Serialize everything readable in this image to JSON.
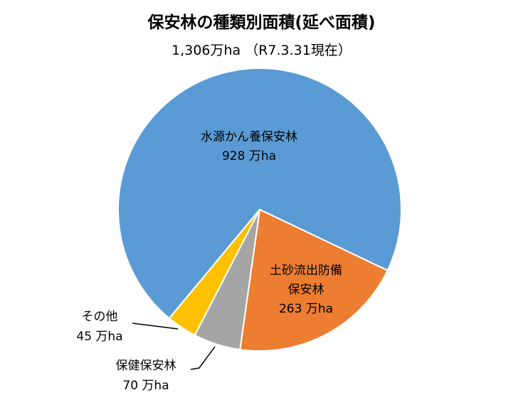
{
  "chart_data": {
    "type": "pie",
    "title": "保安林の種類別面積(延べ面積)",
    "subtitle": "1,306万ha （R7.3.31現在）",
    "categories": [
      "水源かん養保安林",
      "土砂流出防備\n保安林",
      "保健保安林",
      "その他"
    ],
    "values": [
      928,
      263,
      70,
      45
    ],
    "value_labels": [
      "928 万ha",
      "263 万ha",
      "70 万ha",
      "45 万ha"
    ],
    "colors": [
      "#5b9bd5",
      "#ed7d31",
      "#a5a5a5",
      "#ffc000"
    ]
  }
}
